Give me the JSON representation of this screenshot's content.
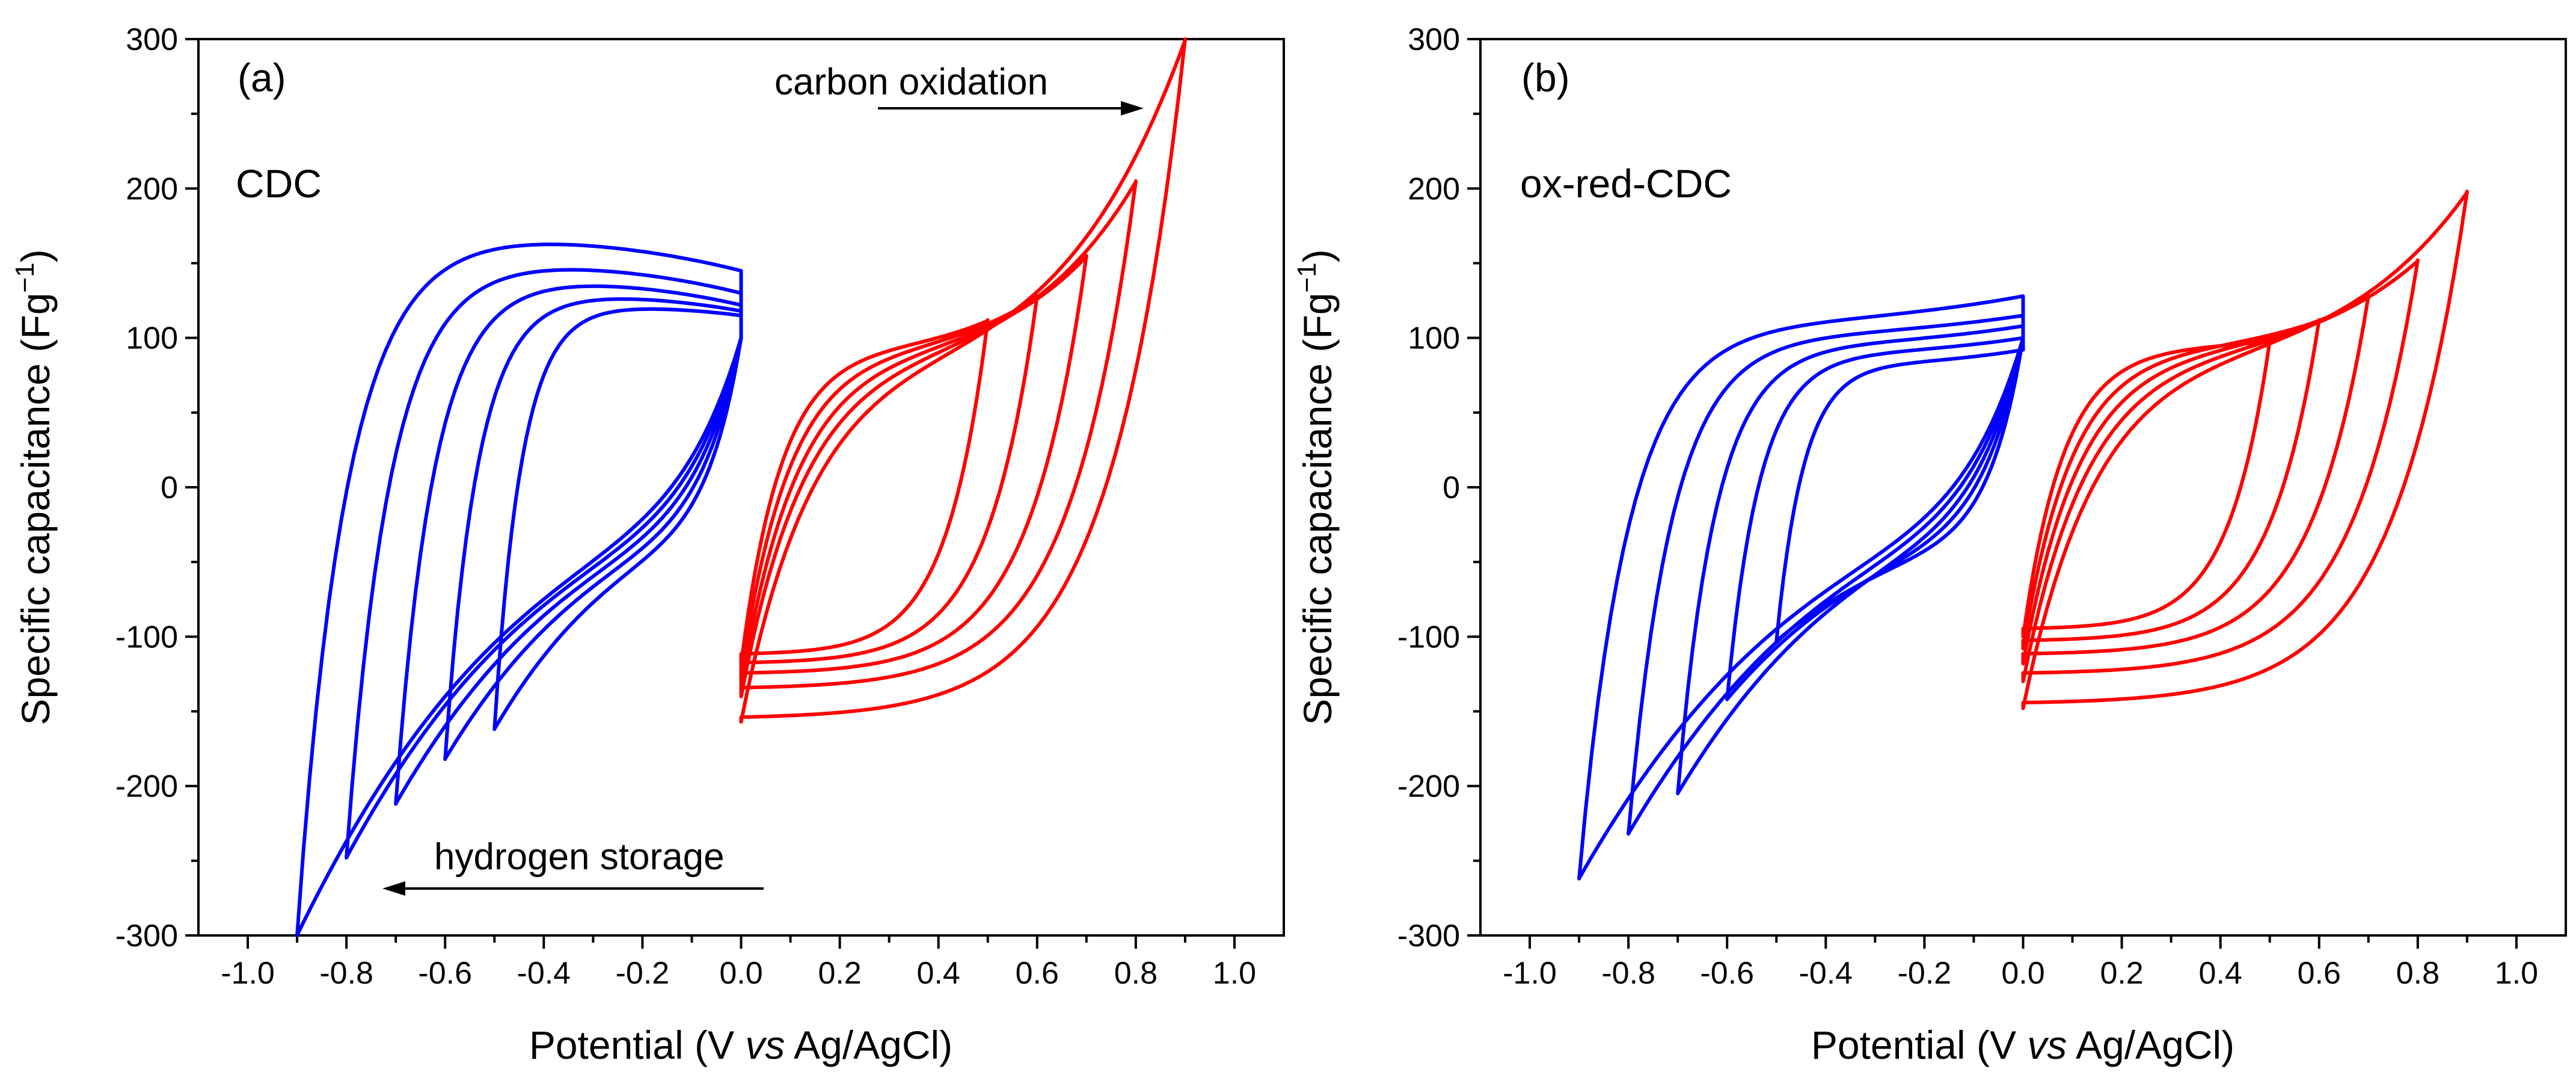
{
  "chart_data": [
    {
      "type": "line",
      "panel_label": "(a)",
      "material_label": "CDC",
      "xlabel": "Potential (V vs Ag/AgCl)",
      "xlabel_parts": {
        "before": "Potential (V ",
        "italic": "vs",
        "after": " Ag/AgCl)"
      },
      "ylabel": "Specific capacitance (Fg−1)",
      "ylabel_parts": {
        "main": "Specific capacitance (Fg",
        "sup": "−1",
        "close": ")"
      },
      "xlim": [
        -1.1,
        1.1
      ],
      "ylim": [
        -300,
        300
      ],
      "x_ticks": [
        -1.0,
        -0.8,
        -0.6,
        -0.4,
        -0.2,
        0.0,
        0.2,
        0.4,
        0.6,
        0.8,
        1.0
      ],
      "x_tick_labels": [
        "-1.0",
        "-0.8",
        "-0.6",
        "-0.4",
        "-0.2",
        "0.0",
        "0.2",
        "0.4",
        "0.6",
        "0.8",
        "1.0"
      ],
      "y_ticks": [
        -300,
        -200,
        -100,
        0,
        100,
        200,
        300
      ],
      "y_tick_labels": [
        "-300",
        "-200",
        "-100",
        "0",
        "100",
        "200",
        "300"
      ],
      "annotations": [
        {
          "text": "carbon oxidation",
          "x": 0.22,
          "y": 258,
          "arrow_from": [
            0.28,
            252
          ],
          "arrow_to": [
            0.82,
            252
          ]
        },
        {
          "text": "hydrogen storage",
          "x": -0.62,
          "y": -249,
          "arrow_from": [
            0.08,
            -270
          ],
          "arrow_to": [
            -0.72,
            -270
          ]
        }
      ],
      "series": [
        {
          "name": "negative",
          "color": "#0000ff",
          "vertex_limits": [
            -0.5,
            -0.6,
            -0.7,
            -0.8,
            -0.9
          ],
          "anodic_start": [
            -162,
            -182,
            -212,
            -248,
            -300
          ],
          "plateau_max": [
            122,
            130,
            140,
            152,
            170
          ],
          "end_current": [
            115,
            118,
            122,
            130,
            145
          ]
        },
        {
          "name": "positive",
          "color": "#ff0000",
          "vertex_limits": [
            0.5,
            0.6,
            0.7,
            0.8,
            0.9
          ],
          "vertex_current": [
            112,
            128,
            155,
            205,
            300
          ],
          "cathodic_plateau": [
            -112,
            -118,
            -125,
            -135,
            -155
          ],
          "start_current": [
            -118,
            -125,
            -133,
            -140,
            -157
          ]
        }
      ]
    },
    {
      "type": "line",
      "panel_label": "(b)",
      "material_label": "ox-red-CDC",
      "xlabel": "Potential (V vs Ag/AgCl)",
      "xlabel_parts": {
        "before": "Potential (V ",
        "italic": "vs",
        "after": " Ag/AgCl)"
      },
      "ylabel": "Specific capacitance (Fg−1)",
      "ylabel_parts": {
        "main": "Specific capacitance (Fg",
        "sup": "−1",
        "close": ")"
      },
      "xlim": [
        -1.1,
        1.1
      ],
      "ylim": [
        -300,
        300
      ],
      "x_ticks": [
        -1.0,
        -0.8,
        -0.6,
        -0.4,
        -0.2,
        0.0,
        0.2,
        0.4,
        0.6,
        0.8,
        1.0
      ],
      "x_tick_labels": [
        "-1.0",
        "-0.8",
        "-0.6",
        "-0.4",
        "-0.2",
        "0.0",
        "0.2",
        "0.4",
        "0.6",
        "0.8",
        "1.0"
      ],
      "y_ticks": [
        -300,
        -200,
        -100,
        0,
        100,
        200,
        300
      ],
      "y_tick_labels": [
        "-300",
        "-200",
        "-100",
        "0",
        "100",
        "200",
        "300"
      ],
      "annotations": [],
      "series": [
        {
          "name": "negative",
          "color": "#0000ff",
          "vertex_limits": [
            -0.5,
            -0.6,
            -0.7,
            -0.8,
            -0.9
          ],
          "anodic_start": [
            -103,
            -142,
            -205,
            -232,
            -262
          ],
          "plateau_max": [
            83,
            90,
            96,
            102,
            110
          ],
          "end_current": [
            92,
            100,
            108,
            115,
            128
          ]
        },
        {
          "name": "positive",
          "color": "#ff0000",
          "vertex_limits": [
            0.5,
            0.6,
            0.7,
            0.8,
            0.9
          ],
          "vertex_current": [
            98,
            112,
            128,
            152,
            198
          ],
          "cathodic_plateau": [
            -95,
            -103,
            -112,
            -125,
            -145
          ],
          "start_current": [
            -100,
            -108,
            -118,
            -130,
            -148
          ]
        }
      ]
    }
  ]
}
